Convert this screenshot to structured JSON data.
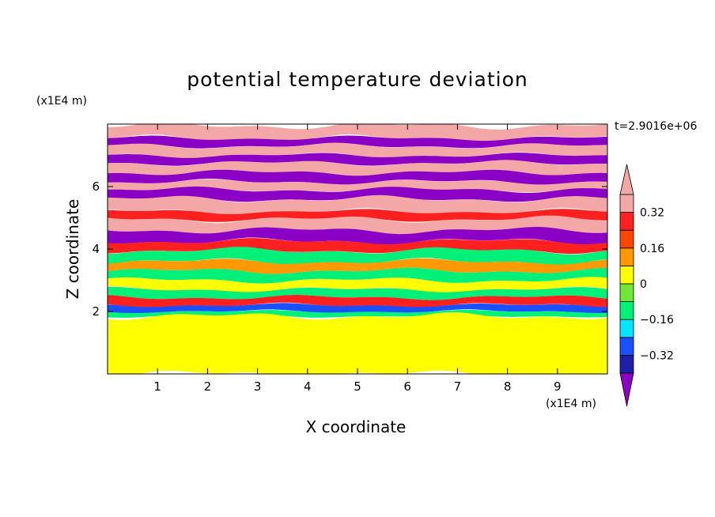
{
  "title": "potential temperature deviation",
  "time_label": "t=2.9016e+06",
  "chart_data": {
    "type": "heatmap",
    "title": "potential temperature deviation",
    "xlabel": "X coordinate",
    "ylabel": "Z coordinate",
    "x_unit": "(x1E4 m)",
    "y_unit": "(x1E4 m)",
    "xlim": [
      0,
      10
    ],
    "ylim": [
      0,
      8
    ],
    "x_ticks": [
      1,
      2,
      3,
      4,
      5,
      6,
      7,
      8,
      9
    ],
    "y_ticks": [
      2,
      4,
      6
    ],
    "colorbar": {
      "levels": [
        -0.4,
        -0.32,
        -0.24,
        -0.16,
        -0.08,
        0,
        0.08,
        0.16,
        0.24,
        0.32,
        0.4
      ],
      "labels": [
        "0.32",
        "0.16",
        "0",
        "−0.16",
        "−0.32"
      ],
      "label_values": [
        0.32,
        0.16,
        0,
        -0.16,
        -0.32
      ],
      "colors": [
        "#8a00c4",
        "#1e1ea8",
        "#1a50ff",
        "#00e6ff",
        "#00f07a",
        "#70e83a",
        "#ffff00",
        "#ff9900",
        "#ff4500",
        "#ff2020",
        "#f4a7a7"
      ],
      "extend": "both"
    },
    "layers": [
      {
        "z": [
          7.55,
          7.95
        ],
        "value": 0.45
      },
      {
        "z": [
          7.3,
          7.55
        ],
        "value": -0.45
      },
      {
        "z": [
          7.0,
          7.3
        ],
        "value": 0.45
      },
      {
        "z": [
          6.75,
          7.0
        ],
        "value": -0.45
      },
      {
        "z": [
          6.45,
          6.75
        ],
        "value": 0.45
      },
      {
        "z": [
          6.15,
          6.45
        ],
        "value": -0.45
      },
      {
        "z": [
          5.9,
          6.15
        ],
        "value": 0.45
      },
      {
        "z": [
          5.6,
          5.9
        ],
        "value": -0.45
      },
      {
        "z": [
          5.2,
          5.6
        ],
        "value": 0.45
      },
      {
        "z": [
          4.95,
          5.2
        ],
        "value": 0.3
      },
      {
        "z": [
          4.6,
          4.95
        ],
        "value": 0.45
      },
      {
        "z": [
          4.25,
          4.6
        ],
        "value": -0.45
      },
      {
        "z": [
          3.95,
          4.25
        ],
        "value": 0.3
      },
      {
        "z": [
          3.6,
          3.95
        ],
        "value": -0.12
      },
      {
        "z": [
          3.3,
          3.6
        ],
        "value": 0.1
      },
      {
        "z": [
          3.0,
          3.3
        ],
        "value": -0.12
      },
      {
        "z": [
          2.7,
          3.0
        ],
        "value": 0.02
      },
      {
        "z": [
          2.45,
          2.7
        ],
        "value": -0.12
      },
      {
        "z": [
          2.2,
          2.45
        ],
        "value": 0.3
      },
      {
        "z": [
          2.0,
          2.2
        ],
        "value": -0.3
      },
      {
        "z": [
          1.85,
          2.0
        ],
        "value": -0.12
      },
      {
        "z": [
          0.0,
          1.85
        ],
        "value": 0.04
      }
    ]
  }
}
